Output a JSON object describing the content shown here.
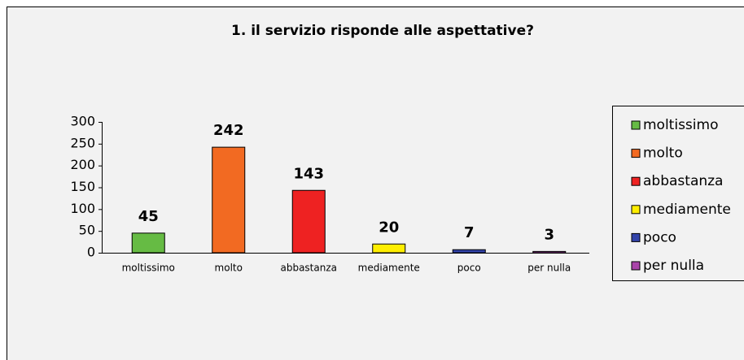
{
  "chart_data": {
    "type": "bar",
    "title": "1. il servizio risponde alle aspettative?",
    "categories": [
      "moltissimo",
      "molto",
      "abbastanza",
      "mediamente",
      "poco",
      "per nulla"
    ],
    "values": [
      45,
      242,
      143,
      20,
      7,
      3
    ],
    "colors": [
      "#66bb44",
      "#f26a22",
      "#ee2222",
      "#ffee00",
      "#3344aa",
      "#aa44aa"
    ],
    "ylim": [
      0,
      300
    ],
    "yticks": [
      0,
      50,
      100,
      150,
      200,
      250,
      300
    ],
    "grid": false,
    "legend": "right"
  }
}
